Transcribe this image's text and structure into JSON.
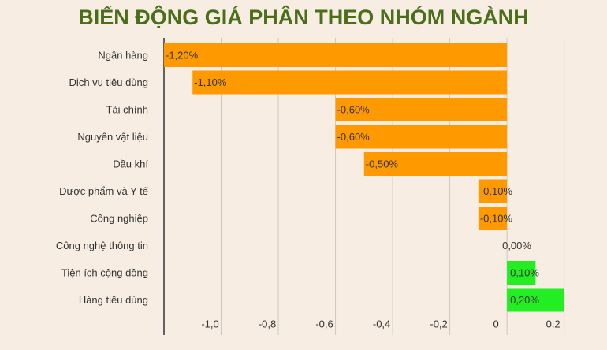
{
  "chart_data": {
    "type": "barh",
    "title": "BIẾN ĐỘNG GIÁ PHÂN THEO NHÓM NGÀNH",
    "categories": [
      "Ngân hàng",
      "Dịch vụ tiêu dùng",
      "Tài chính",
      "Nguyên vật liệu",
      "Dầu khí",
      "Dược phẩm và Y tế",
      "Công nghiệp",
      "Công nghệ thông tin",
      "Tiện ích cộng đồng",
      "Hàng tiêu dùng"
    ],
    "values": [
      -1.2,
      -1.1,
      -0.6,
      -0.6,
      -0.5,
      -0.1,
      -0.1,
      0,
      0.1,
      0.2
    ],
    "value_labels": [
      "-1,20%",
      "-1,10%",
      "-0,60%",
      "-0,60%",
      "-0,50%",
      "-0,10%",
      "-0,10%",
      "0,00%",
      "0,10%",
      "0,20%"
    ],
    "colors": [
      "#ff9900",
      "#ff9900",
      "#ff9900",
      "#ff9900",
      "#ff9900",
      "#ff9900",
      "#ff9900",
      "#ff9900",
      "#22ee22",
      "#22ee22"
    ],
    "xlim": [
      -1.2,
      0.35
    ],
    "xticks": [
      {
        "value": -1,
        "label": "-1,0"
      },
      {
        "value": -0.8,
        "label": "-0,8"
      },
      {
        "value": -0.6,
        "label": "-0,6"
      },
      {
        "value": -0.4,
        "label": "-0,4"
      },
      {
        "value": -0.2,
        "label": "-0,2"
      },
      0,
      {
        "value": 0.2,
        "label": "0,2"
      }
    ],
    "grid": true
  }
}
